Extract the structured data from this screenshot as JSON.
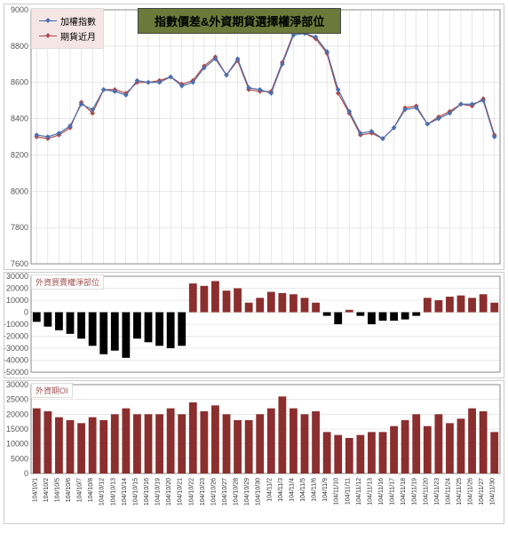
{
  "title": "指數價差&外資期貨選擇權淨部位",
  "legend": {
    "series1": {
      "label": "加權指數",
      "color": "#4a6fb0",
      "marker": "diamond"
    },
    "series2": {
      "label": "期貨近月",
      "color": "#b04a4a",
      "marker": "square"
    }
  },
  "panel2_label": "外資買賣權淨部位",
  "panel3_label": "外資期OI",
  "dates": [
    "104/10/1",
    "104/10/2",
    "104/10/5",
    "104/10/6",
    "104/10/7",
    "104/10/8",
    "104/10/12",
    "104/10/13",
    "104/10/14",
    "104/10/15",
    "104/10/16",
    "104/10/19",
    "104/10/20",
    "104/10/21",
    "104/10/22",
    "104/10/23",
    "104/10/26",
    "104/10/27",
    "104/10/28",
    "104/10/29",
    "104/10/30",
    "104/11/2",
    "104/11/3",
    "104/11/4",
    "104/11/5",
    "104/11/6",
    "104/11/9",
    "104/11/10",
    "104/11/11",
    "104/11/12",
    "104/11/13",
    "104/11/16",
    "104/11/17",
    "104/11/18",
    "104/11/19",
    "104/11/20",
    "104/11/23",
    "104/11/24",
    "104/11/25",
    "104/11/26",
    "104/11/27",
    "104/11/30"
  ],
  "main_chart": {
    "type": "line",
    "ylim": [
      7600,
      9000
    ],
    "ytick_step": 200,
    "series1_data": [
      8310,
      8300,
      8320,
      8360,
      8480,
      8450,
      8560,
      8550,
      8530,
      8610,
      8600,
      8600,
      8630,
      8580,
      8600,
      8680,
      8730,
      8640,
      8730,
      8570,
      8560,
      8540,
      8700,
      8860,
      8870,
      8850,
      8770,
      8560,
      8440,
      8320,
      8330,
      8290,
      8350,
      8450,
      8460,
      8370,
      8400,
      8430,
      8480,
      8480,
      8500,
      8300
    ],
    "series2_data": [
      8300,
      8290,
      8310,
      8350,
      8490,
      8430,
      8560,
      8560,
      8540,
      8600,
      8600,
      8610,
      8630,
      8590,
      8610,
      8690,
      8740,
      8640,
      8720,
      8560,
      8550,
      8550,
      8710,
      8870,
      8870,
      8840,
      8760,
      8540,
      8430,
      8310,
      8320,
      8290,
      8350,
      8460,
      8470,
      8370,
      8410,
      8440,
      8480,
      8470,
      8510,
      8310
    ]
  },
  "panel2_chart": {
    "type": "bar",
    "ylim": [
      -50000,
      30000
    ],
    "ytick_step": 10000,
    "data": [
      -8000,
      -12000,
      -15000,
      -18000,
      -22000,
      -28000,
      -35000,
      -32000,
      -38000,
      -22000,
      -25000,
      -28000,
      -30000,
      -28000,
      24000,
      22000,
      26000,
      18000,
      20000,
      8000,
      12000,
      17000,
      16000,
      15000,
      12000,
      8000,
      -3000,
      -10000,
      2000,
      -3000,
      -10000,
      -7000,
      -7000,
      -6000,
      -3000,
      12000,
      10000,
      13000,
      14000,
      12000,
      15000,
      8000
    ],
    "pos_color": "#8b2e2e",
    "neg_color": "#000000"
  },
  "panel3_chart": {
    "type": "bar",
    "ylim": [
      0,
      30000
    ],
    "ytick_step": 5000,
    "data": [
      22000,
      21000,
      19000,
      18000,
      17000,
      19000,
      18000,
      20000,
      22000,
      20000,
      20000,
      20000,
      22000,
      20000,
      24000,
      21000,
      23000,
      20000,
      18000,
      18000,
      20000,
      22000,
      26000,
      22000,
      20000,
      21000,
      14000,
      13000,
      12000,
      13000,
      14000,
      14000,
      16000,
      18000,
      20000,
      16000,
      20000,
      17000,
      18500,
      22000,
      21000,
      14000
    ],
    "color": "#8b2e2e"
  },
  "colors": {
    "grid": "#d0d0d0",
    "border": "#888888",
    "bg": "#ffffff"
  }
}
